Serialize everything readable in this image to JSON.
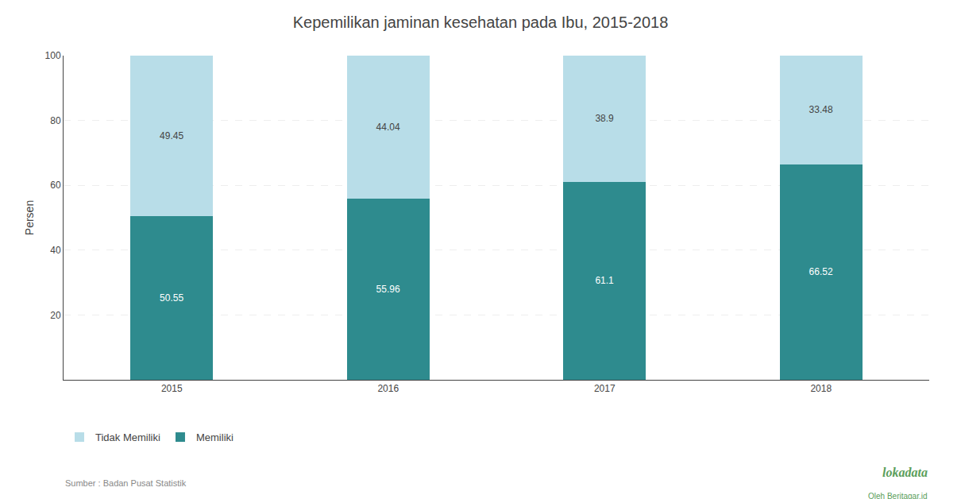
{
  "chart_data": {
    "type": "bar",
    "stacked": true,
    "title": "Kepemilikan jaminan kesehatan pada Ibu, 2015-2018",
    "categories": [
      "2015",
      "2016",
      "2017",
      "2018"
    ],
    "series": [
      {
        "name": "Memiliki",
        "color": "#2e8b8e",
        "values": [
          50.55,
          55.96,
          61.1,
          66.52
        ]
      },
      {
        "name": "Tidak Memiliki",
        "color": "#b8dde8",
        "values": [
          49.45,
          44.04,
          38.9,
          33.48
        ]
      }
    ],
    "ylabel": "Persen",
    "ylim": [
      0,
      100
    ],
    "yticks": [
      20,
      40,
      60,
      80,
      100
    ],
    "grid": true,
    "data_labels": true,
    "legend": "bottom",
    "annotations": [
      "Sumber : Badan Pusat Statistik",
      "lokadata",
      "Oleh Beritagar.id"
    ]
  }
}
